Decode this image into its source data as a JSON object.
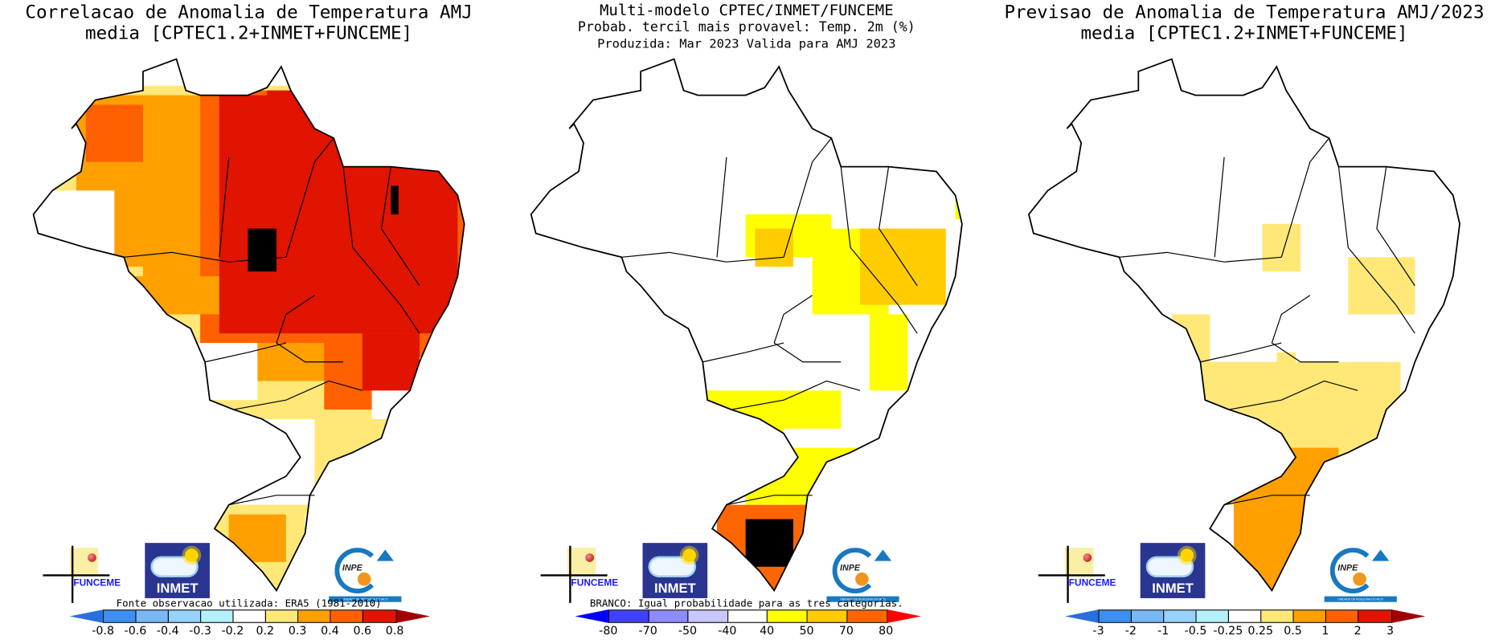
{
  "panels": [
    {
      "title_lines": [
        "Correlacao de Anomalia de Temperatura AMJ",
        "media [CPTEC1.2+INMET+FUNCEME]"
      ],
      "note": "Fonte observacao utilizada: ERA5 (1981-2010)",
      "colorbar": {
        "labels": [
          "-0.8",
          "-0.6",
          "-0.4",
          "-0.3",
          "-0.2",
          "0.2",
          "0.3",
          "0.4",
          "0.6",
          "0.8"
        ],
        "colors": [
          "#3c8ff0",
          "#78b8f5",
          "#96d2fa",
          "#b4f0fa",
          "#ffffff",
          "#ffe878",
          "#ffa000",
          "#ff6000",
          "#e01400"
        ],
        "under_color": "#2a6fe0",
        "over_color": "#a00000"
      }
    },
    {
      "title_lines": [
        "Multi-modelo CPTEC/INMET/FUNCEME",
        "Probab. tercil mais provavel: Temp. 2m (%)",
        "Produzida: Mar 2023  Valida para AMJ 2023"
      ],
      "note": "BRANCO: Igual probabilidade para as tres categorias.",
      "colorbar": {
        "labels": [
          "-80",
          "-70",
          "-50",
          "-40",
          "40",
          "50",
          "70",
          "80"
        ],
        "colors": [
          "#4040ff",
          "#8c8cff",
          "#c8c8ff",
          "#ffffff",
          "#ffff00",
          "#ffcc00",
          "#ff6600"
        ],
        "under_color": "#0000ff",
        "over_color": "#ff0000"
      }
    },
    {
      "title_lines": [
        "Previsao de Anomalia de Temperatura AMJ/2023",
        "media [CPTEC1.2+INMET+FUNCEME]"
      ],
      "note": "",
      "colorbar": {
        "labels": [
          "-3",
          "-2",
          "-1",
          "-0.5",
          "-0.25",
          "0.25",
          "0.5",
          "1",
          "2",
          "3"
        ],
        "colors": [
          "#3c8ff0",
          "#78b8f5",
          "#96d2fa",
          "#b4f0fa",
          "#ffffff",
          "#ffe878",
          "#ffa000",
          "#ff6000",
          "#e01400"
        ],
        "under_color": "#2a6fe0",
        "over_color": "#a00000"
      }
    }
  ],
  "logos": {
    "funceme": "FUNCEME",
    "inmet": "INMET",
    "inpe": "INPE",
    "inpe_sub": "UNIDADE DE PESQUISA DO MCTI"
  }
}
